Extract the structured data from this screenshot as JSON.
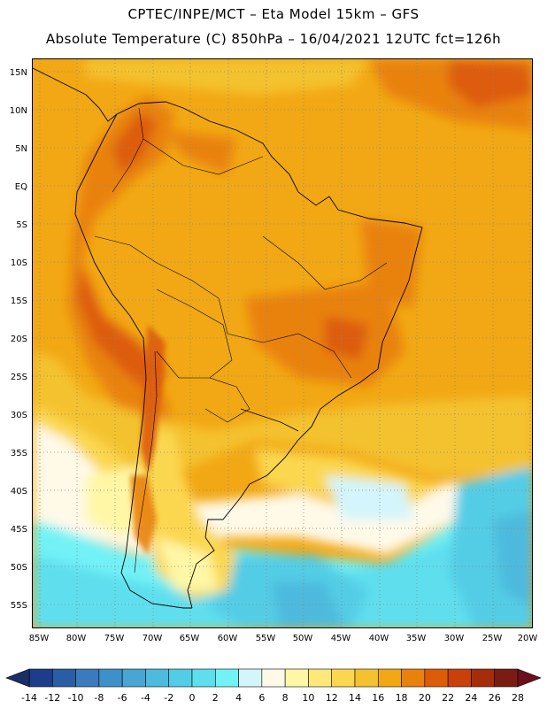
{
  "header": {
    "line1": "CPTEC/INPE/MCT –  Eta Model 15km – GFS",
    "line2": "Absolute Temperature (C) 850hPa – 16/04/2021 12UTC fct=126h"
  },
  "map": {
    "lat_labels": [
      "15N",
      "10N",
      "5N",
      "EQ",
      "5S",
      "10S",
      "15S",
      "20S",
      "25S",
      "30S",
      "35S",
      "40S",
      "45S",
      "50S",
      "55S"
    ],
    "lon_labels": [
      "85W",
      "80W",
      "75W",
      "70W",
      "65W",
      "60W",
      "55W",
      "50W",
      "45W",
      "40W",
      "35W",
      "30W",
      "25W",
      "20W"
    ],
    "extent": {
      "lon_min": -86,
      "lon_max": -19,
      "lat_min": -58,
      "lat_max": 17
    },
    "grid_style": "dotted",
    "background_color": "#f2a814"
  },
  "colorbar": {
    "labels": [
      "-14",
      "-12",
      "-10",
      "-8",
      "-6",
      "-4",
      "-2",
      "0",
      "2",
      "4",
      "6",
      "8",
      "10",
      "12",
      "14",
      "16",
      "18",
      "20",
      "22",
      "24",
      "26",
      "28"
    ],
    "colors": [
      "#1e3c8c",
      "#285ea4",
      "#3b7bbd",
      "#3e91c8",
      "#47a6d2",
      "#4ebadd",
      "#52cde6",
      "#5fdfee",
      "#72f2f7",
      "#d3f5fb",
      "#fff9e8",
      "#fff7a6",
      "#fee87a",
      "#fbd74f",
      "#f4c22e",
      "#f2a814",
      "#e9820d",
      "#dd5c08",
      "#c9410a",
      "#a52d0c",
      "#7a1c12"
    ],
    "under_color": "#183066",
    "over_color": "#6b0f1e"
  }
}
